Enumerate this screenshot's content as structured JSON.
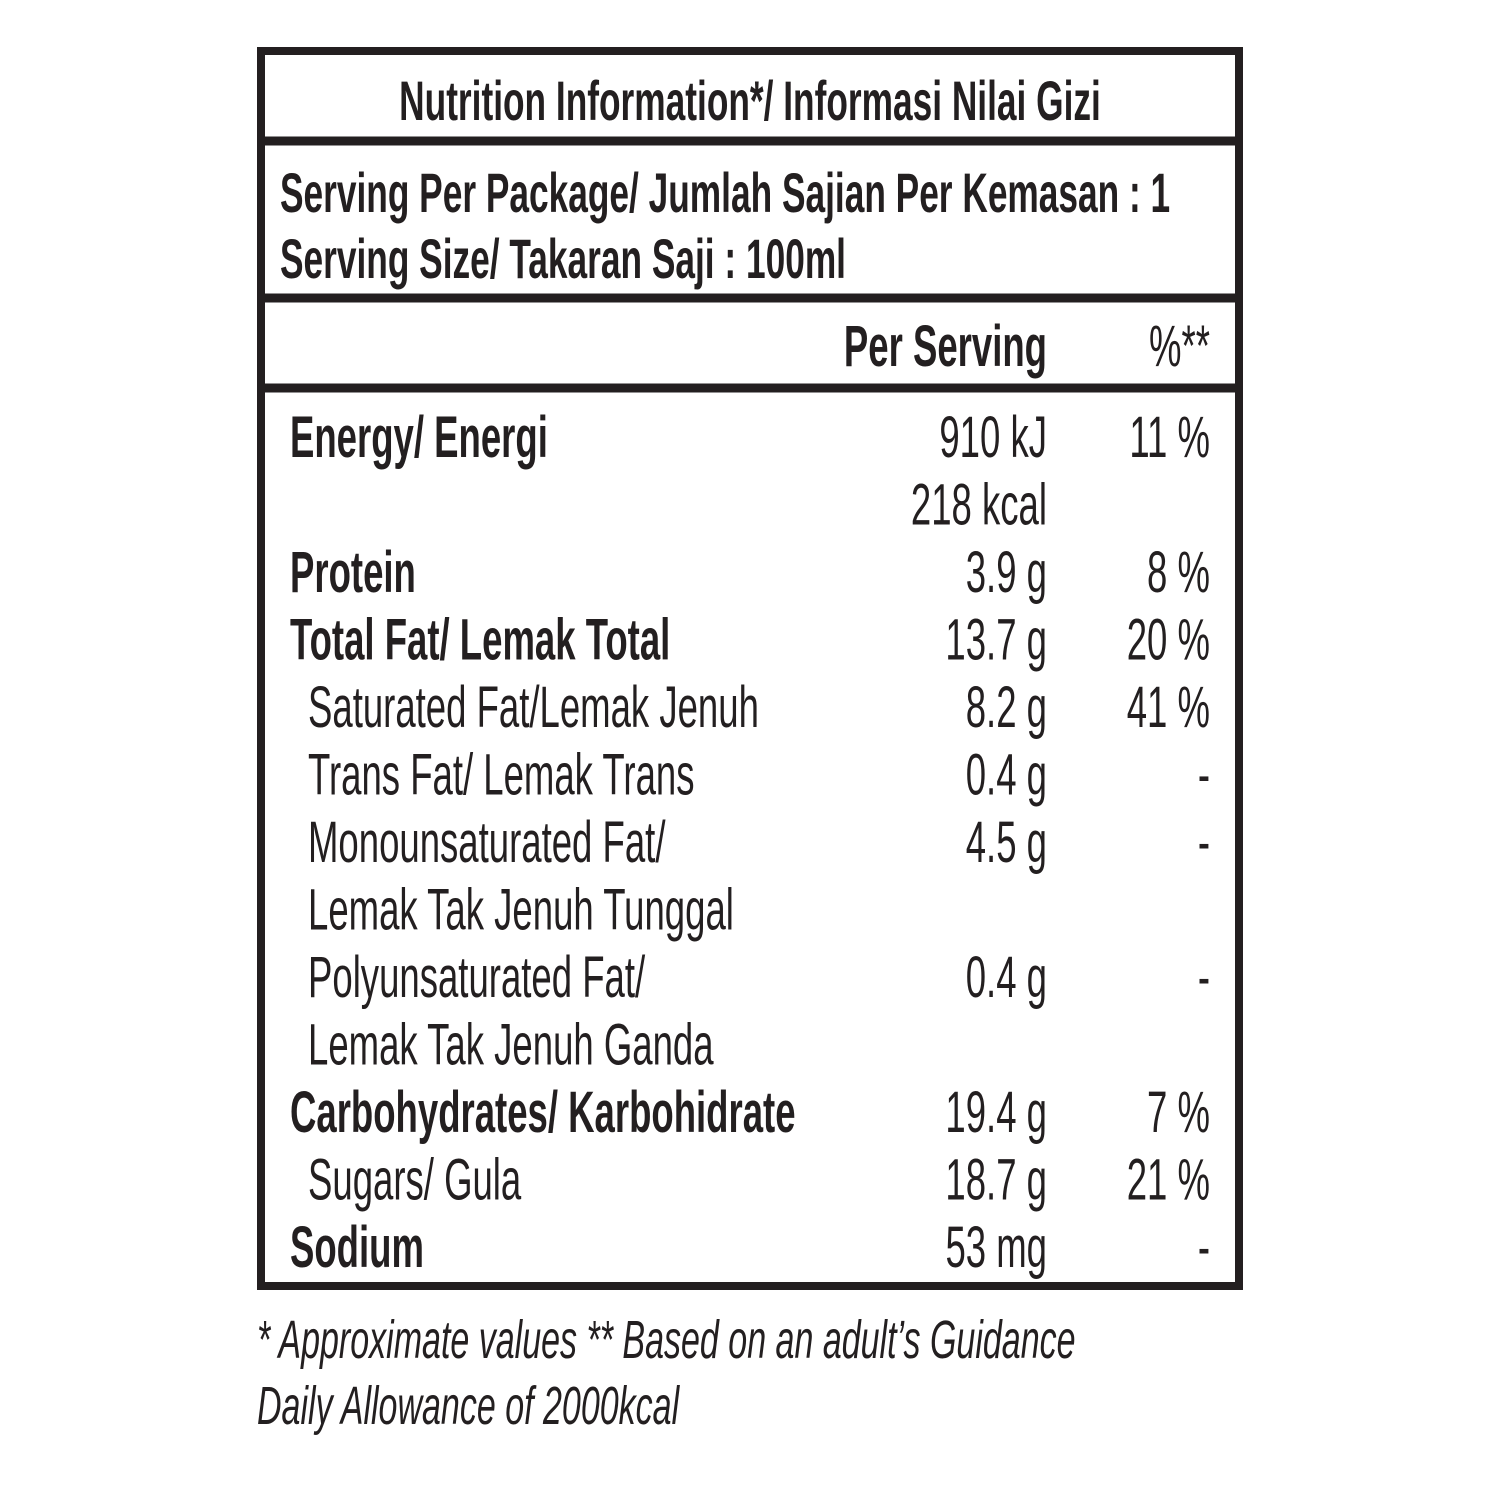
{
  "title": "Nutrition Information*/ Informasi Nilai Gizi",
  "serving": [
    "Serving Per Package/ Jumlah Sajian Per Kemasan : 1",
    "Serving Size/ Takaran Saji : 100ml"
  ],
  "header": {
    "per_serving": "Per Serving",
    "percent": "%**"
  },
  "rows": [
    {
      "label": [
        "Energy/ Energi"
      ],
      "amount": [
        "910 kJ",
        "218 kcal"
      ],
      "percent": "11 %",
      "level": "main"
    },
    {
      "label": [
        "Protein"
      ],
      "amount": [
        "3.9 g"
      ],
      "percent": "8 %",
      "level": "main"
    },
    {
      "label": [
        "Total Fat/ Lemak Total"
      ],
      "amount": [
        "13.7 g"
      ],
      "percent": "20 %",
      "level": "main"
    },
    {
      "label": [
        "Saturated Fat/Lemak Jenuh"
      ],
      "amount": [
        "8.2 g"
      ],
      "percent": "41 %",
      "level": "sub"
    },
    {
      "label": [
        "Trans Fat/ Lemak Trans"
      ],
      "amount": [
        "0.4 g"
      ],
      "percent": "-",
      "level": "sub"
    },
    {
      "label": [
        "Monounsaturated Fat/",
        "Lemak Tak Jenuh Tunggal"
      ],
      "amount": [
        "4.5 g"
      ],
      "percent": "-",
      "level": "sub"
    },
    {
      "label": [
        "Polyunsaturated Fat/",
        "Lemak Tak Jenuh Ganda"
      ],
      "amount": [
        "0.4 g"
      ],
      "percent": "-",
      "level": "sub"
    },
    {
      "label": [
        "Carbohydrates/ Karbohidrate"
      ],
      "amount": [
        "19.4 g"
      ],
      "percent": "7 %",
      "level": "main"
    },
    {
      "label": [
        "Sugars/ Gula"
      ],
      "amount": [
        "18.7 g"
      ],
      "percent": "21 %",
      "level": "sub"
    },
    {
      "label": [
        "Sodium"
      ],
      "amount": [
        "53 mg"
      ],
      "percent": "-",
      "level": "main"
    }
  ],
  "footnote": [
    "* Approximate values  ** Based on an adult’s Guidance",
    "Daily Allowance of 2000kcal"
  ]
}
